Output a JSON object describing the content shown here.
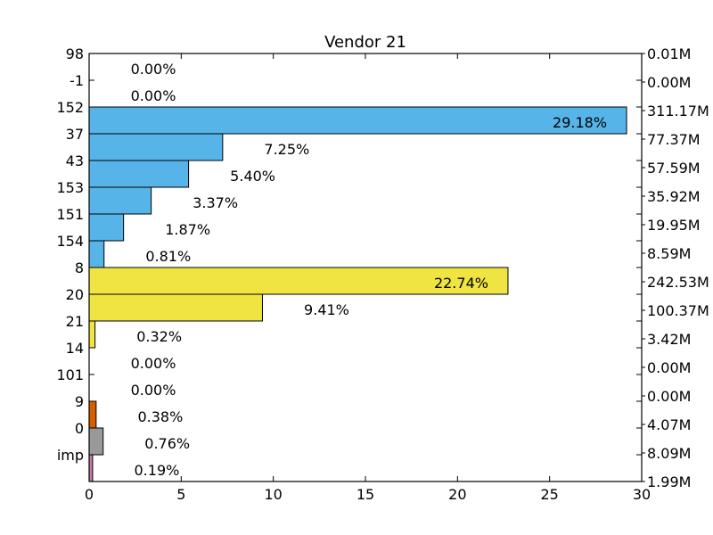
{
  "chart_data": {
    "type": "bar",
    "orientation": "horizontal",
    "title": "Vendor 21",
    "xlabel": "",
    "ylabel": "",
    "xlim": [
      0,
      30
    ],
    "xticks": [
      "0",
      "5",
      "10",
      "15",
      "20",
      "25",
      "30"
    ],
    "grid": false,
    "legend": "none",
    "categories": [
      "98",
      "-1",
      "152",
      "37",
      "43",
      "153",
      "151",
      "154",
      "8",
      "20",
      "21",
      "14",
      "101",
      "9",
      "0",
      "imp"
    ],
    "values": [
      0.0,
      0.0,
      29.18,
      7.25,
      5.4,
      3.37,
      1.87,
      0.81,
      22.74,
      9.41,
      0.32,
      0.0,
      0.0,
      0.38,
      0.76,
      0.19
    ],
    "percent_labels": [
      "0.00%",
      "0.00%",
      "29.18%",
      "7.25%",
      "5.40%",
      "3.37%",
      "1.87%",
      "0.81%",
      "22.74%",
      "9.41%",
      "0.32%",
      "0.00%",
      "0.00%",
      "0.38%",
      "0.76%",
      "0.19%"
    ],
    "right_labels": [
      "0.01M",
      "0.00M",
      "311.17M",
      "77.37M",
      "57.59M",
      "35.92M",
      "19.95M",
      "8.59M",
      "242.53M",
      "100.37M",
      "3.42M",
      "0.00M",
      "0.00M",
      "4.07M",
      "8.09M",
      "1.99M"
    ],
    "colors": [
      "#56b4e9",
      "#56b4e9",
      "#56b4e9",
      "#56b4e9",
      "#56b4e9",
      "#56b4e9",
      "#56b4e9",
      "#56b4e9",
      "#f0e442",
      "#f0e442",
      "#f0e442",
      "#f0e442",
      "#f0e442",
      "#d55e00",
      "#999999",
      "#cc79a7"
    ]
  }
}
